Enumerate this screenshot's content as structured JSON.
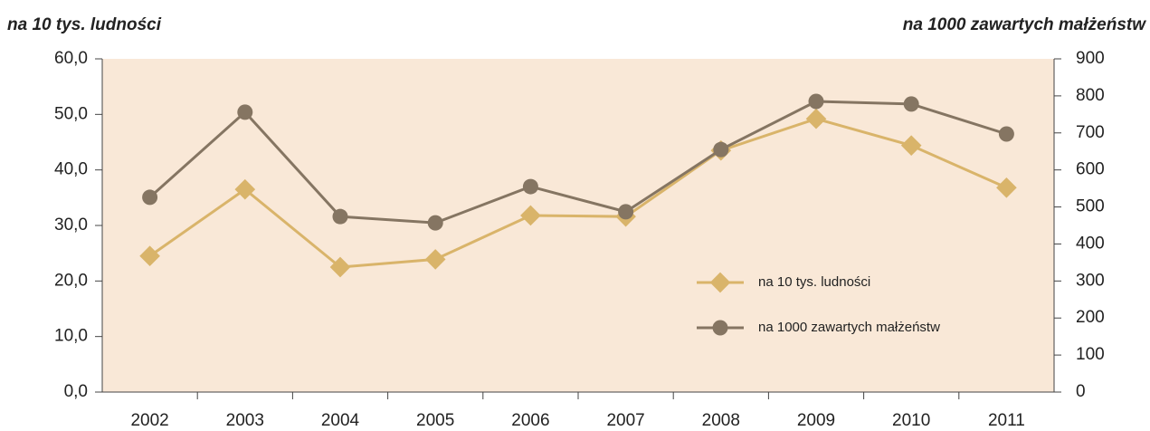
{
  "chart_data": {
    "type": "line",
    "y_label": "na 10 tys. ludności",
    "y2_label": "na 1000 zawartych małżeństw",
    "categories": [
      "2002",
      "2003",
      "2004",
      "2005",
      "2006",
      "2007",
      "2008",
      "2009",
      "2010",
      "2011"
    ],
    "series": [
      {
        "name": "na 10 tys. ludności",
        "color": "#d9b46a",
        "marker": "diamond",
        "values": [
          24.5,
          36.5,
          22.5,
          23.9,
          31.8,
          31.6,
          43.5,
          49.2,
          44.4,
          36.8
        ]
      },
      {
        "name": "na 1000 zawartych małżeństw",
        "color": "#857562",
        "marker": "circle",
        "axis": "y2",
        "values": [
          526,
          756,
          474,
          457,
          555,
          487,
          655,
          785,
          778,
          697
        ]
      }
    ],
    "ylim": [
      0,
      60
    ],
    "yticks": [
      {
        "value": 0,
        "label": "0,0"
      },
      {
        "value": 10,
        "label": "10,0"
      },
      {
        "value": 20,
        "label": "20,0"
      },
      {
        "value": 30,
        "label": "30,0"
      },
      {
        "value": 40,
        "label": "40,0"
      },
      {
        "value": 50,
        "label": "50,0"
      },
      {
        "value": 60,
        "label": "60,0"
      }
    ],
    "y2lim": [
      0,
      900
    ],
    "y2ticks": [
      0,
      100,
      200,
      300,
      400,
      500,
      600,
      700,
      800,
      900
    ],
    "background": "#f9e8d7",
    "legend": "right"
  }
}
